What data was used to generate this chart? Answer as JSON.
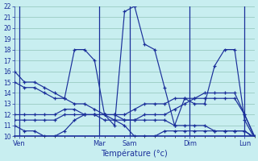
{
  "background_color": "#c8eef0",
  "grid_color": "#a0d0c8",
  "line_color": "#1a2f9a",
  "xlabel": "Température (°c)",
  "ylim": [
    10,
    22
  ],
  "yticks": [
    10,
    11,
    12,
    13,
    14,
    15,
    16,
    17,
    18,
    19,
    20,
    21,
    22
  ],
  "day_labels": [
    "Ven",
    "Mar",
    "Sam",
    "Dim",
    "Lun"
  ],
  "day_x": [
    0.5,
    8.5,
    11.5,
    17.5,
    23.0
  ],
  "vline_x": [
    0.5,
    8.5,
    11.5,
    17.5,
    23.0
  ],
  "xlim": [
    0,
    24
  ],
  "num_points": 25,
  "series": [
    [
      16.0,
      15.0,
      15.0,
      14.5,
      14.0,
      13.5,
      18.0,
      18.0,
      17.0,
      12.0,
      11.0,
      21.5,
      22.0,
      18.5,
      18.0,
      14.5,
      11.0,
      13.5,
      13.0,
      13.0,
      16.5,
      18.0,
      18.0,
      11.5,
      9.8
    ],
    [
      11.5,
      11.5,
      11.5,
      11.5,
      11.5,
      12.0,
      12.0,
      12.0,
      12.0,
      11.5,
      11.5,
      11.5,
      11.5,
      12.0,
      12.0,
      12.0,
      12.5,
      13.0,
      13.5,
      13.5,
      13.5,
      13.5,
      13.5,
      12.0,
      9.9
    ],
    [
      11.0,
      10.5,
      10.5,
      10.0,
      10.0,
      10.5,
      11.5,
      12.0,
      12.0,
      12.0,
      11.5,
      11.0,
      10.0,
      10.0,
      10.0,
      10.5,
      10.5,
      10.5,
      10.5,
      10.5,
      10.5,
      10.5,
      10.5,
      10.5,
      9.8
    ],
    [
      15.0,
      14.5,
      14.5,
      14.0,
      13.5,
      13.5,
      13.0,
      13.0,
      12.5,
      12.0,
      12.0,
      11.5,
      11.5,
      11.5,
      11.5,
      11.5,
      11.0,
      11.0,
      11.0,
      11.0,
      10.5,
      10.5,
      10.5,
      10.5,
      9.9
    ],
    [
      12.0,
      12.0,
      12.0,
      12.0,
      12.0,
      12.5,
      12.5,
      12.0,
      12.0,
      12.0,
      12.0,
      12.0,
      12.5,
      13.0,
      13.0,
      13.0,
      13.5,
      13.5,
      13.5,
      14.0,
      14.0,
      14.0,
      14.0,
      12.0,
      10.0
    ]
  ]
}
